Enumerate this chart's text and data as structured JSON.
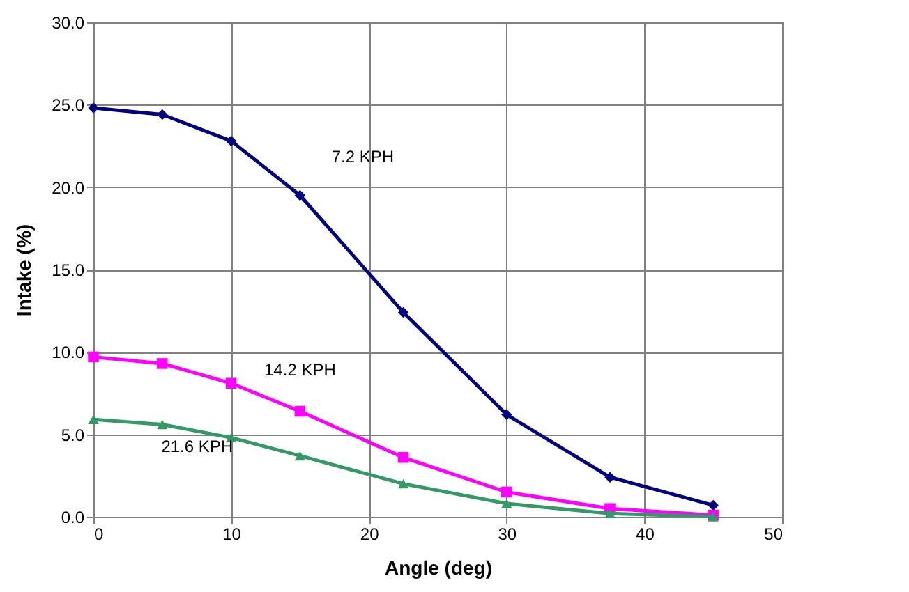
{
  "chart_data": {
    "type": "line",
    "xlabel": "Angle (deg)",
    "ylabel": "Intake (%)",
    "x": [
      0,
      5,
      10,
      15,
      22.5,
      30,
      37.5,
      45
    ],
    "series": [
      {
        "name": "7.2 KPH",
        "color": "#000080",
        "marker": "diamond",
        "values": [
          24.8,
          24.4,
          22.8,
          19.5,
          12.4,
          6.2,
          2.4,
          0.7
        ]
      },
      {
        "name": "14.2 KPH",
        "color": "#ff00ff",
        "marker": "square",
        "values": [
          9.7,
          9.3,
          8.1,
          6.4,
          3.6,
          1.5,
          0.5,
          0.1
        ]
      },
      {
        "name": "21.6 KPH",
        "color": "#339966",
        "marker": "triangle",
        "values": [
          5.9,
          5.6,
          4.8,
          3.7,
          2.0,
          0.8,
          0.2,
          0.0
        ]
      }
    ],
    "xlim": [
      0,
      50
    ],
    "xticks": [
      0,
      10,
      20,
      30,
      40,
      50
    ],
    "ylim": [
      0,
      30
    ],
    "yticks": [
      {
        "value": 0,
        "label": "0.0"
      },
      {
        "value": 5,
        "label": "5.0"
      },
      {
        "value": 10,
        "label": "10.0"
      },
      {
        "value": 15,
        "label": "15.0"
      },
      {
        "value": 20,
        "label": "20.0"
      },
      {
        "value": 25,
        "label": "25.0"
      },
      {
        "value": 30,
        "label": "30.0"
      }
    ],
    "grid": true,
    "line_style": "solid"
  }
}
